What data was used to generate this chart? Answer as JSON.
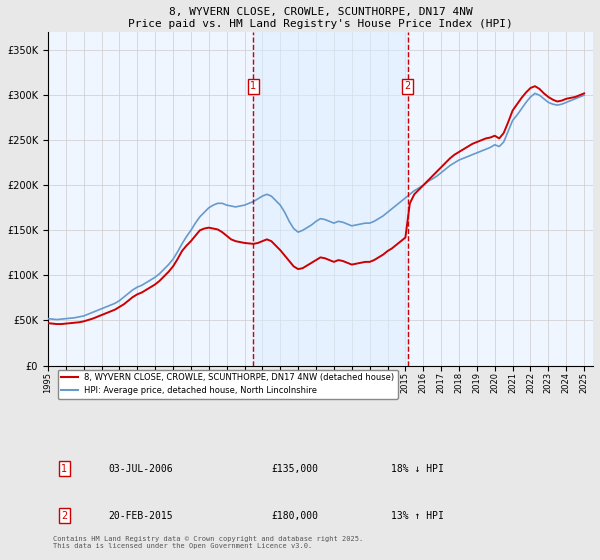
{
  "title": "8, WYVERN CLOSE, CROWLE, SCUNTHORPE, DN17 4NW",
  "subtitle": "Price paid vs. HM Land Registry's House Price Index (HPI)",
  "legend_line1": "8, WYVERN CLOSE, CROWLE, SCUNTHORPE, DN17 4NW (detached house)",
  "legend_line2": "HPI: Average price, detached house, North Lincolnshire",
  "annotation1_date": "03-JUL-2006",
  "annotation1_price": "£135,000",
  "annotation1_hpi": "18% ↓ HPI",
  "annotation2_date": "20-FEB-2015",
  "annotation2_price": "£180,000",
  "annotation2_hpi": "13% ↑ HPI",
  "vline1_year": 2006.5,
  "vline2_year": 2015.12,
  "ylabel_fmt": "£{0}K",
  "yticks": [
    0,
    50000,
    100000,
    150000,
    200000,
    250000,
    300000,
    350000
  ],
  "ylim": [
    0,
    370000
  ],
  "xlim_start": 1995,
  "xlim_end": 2025.5,
  "bg_color": "#ddeeff",
  "plot_bg": "#f0f6ff",
  "red_color": "#cc0000",
  "blue_color": "#6699cc",
  "vline_color": "#cc0000",
  "footer": "Contains HM Land Registry data © Crown copyright and database right 2025.\nThis data is licensed under the Open Government Licence v3.0.",
  "hpi_data_x": [
    1995.0,
    1995.25,
    1995.5,
    1995.75,
    1996.0,
    1996.25,
    1996.5,
    1996.75,
    1997.0,
    1997.25,
    1997.5,
    1997.75,
    1998.0,
    1998.25,
    1998.5,
    1998.75,
    1999.0,
    1999.25,
    1999.5,
    1999.75,
    2000.0,
    2000.25,
    2000.5,
    2000.75,
    2001.0,
    2001.25,
    2001.5,
    2001.75,
    2002.0,
    2002.25,
    2002.5,
    2002.75,
    2003.0,
    2003.25,
    2003.5,
    2003.75,
    2004.0,
    2004.25,
    2004.5,
    2004.75,
    2005.0,
    2005.25,
    2005.5,
    2005.75,
    2006.0,
    2006.25,
    2006.5,
    2006.75,
    2007.0,
    2007.25,
    2007.5,
    2007.75,
    2008.0,
    2008.25,
    2008.5,
    2008.75,
    2009.0,
    2009.25,
    2009.5,
    2009.75,
    2010.0,
    2010.25,
    2010.5,
    2010.75,
    2011.0,
    2011.25,
    2011.5,
    2011.75,
    2012.0,
    2012.25,
    2012.5,
    2012.75,
    2013.0,
    2013.25,
    2013.5,
    2013.75,
    2014.0,
    2014.25,
    2014.5,
    2014.75,
    2015.0,
    2015.25,
    2015.5,
    2015.75,
    2016.0,
    2016.25,
    2016.5,
    2016.75,
    2017.0,
    2017.25,
    2017.5,
    2017.75,
    2018.0,
    2018.25,
    2018.5,
    2018.75,
    2019.0,
    2019.25,
    2019.5,
    2019.75,
    2020.0,
    2020.25,
    2020.5,
    2020.75,
    2021.0,
    2021.25,
    2021.5,
    2021.75,
    2022.0,
    2022.25,
    2022.5,
    2022.75,
    2023.0,
    2023.25,
    2023.5,
    2023.75,
    2024.0,
    2024.25,
    2024.5,
    2024.75,
    2025.0
  ],
  "hpi_data_y": [
    52000,
    51500,
    51000,
    51500,
    52000,
    52500,
    53000,
    54000,
    55000,
    57000,
    59000,
    61000,
    63000,
    65000,
    67000,
    69000,
    72000,
    76000,
    80000,
    84000,
    87000,
    89000,
    92000,
    95000,
    98000,
    102000,
    107000,
    112000,
    118000,
    126000,
    135000,
    143000,
    150000,
    158000,
    165000,
    170000,
    175000,
    178000,
    180000,
    180000,
    178000,
    177000,
    176000,
    177000,
    178000,
    180000,
    182000,
    185000,
    188000,
    190000,
    188000,
    183000,
    178000,
    170000,
    160000,
    152000,
    148000,
    150000,
    153000,
    156000,
    160000,
    163000,
    162000,
    160000,
    158000,
    160000,
    159000,
    157000,
    155000,
    156000,
    157000,
    158000,
    158000,
    160000,
    163000,
    166000,
    170000,
    174000,
    178000,
    182000,
    186000,
    190000,
    194000,
    197000,
    200000,
    204000,
    207000,
    210000,
    214000,
    218000,
    222000,
    225000,
    228000,
    230000,
    232000,
    234000,
    236000,
    238000,
    240000,
    242000,
    245000,
    243000,
    248000,
    260000,
    272000,
    278000,
    285000,
    292000,
    298000,
    302000,
    300000,
    296000,
    292000,
    290000,
    289000,
    290000,
    292000,
    294000,
    296000,
    298000,
    300000
  ],
  "price_data_x": [
    1995.0,
    1995.25,
    1995.5,
    1995.75,
    1996.0,
    1996.25,
    1996.5,
    1996.75,
    1997.0,
    1997.25,
    1997.5,
    1997.75,
    1998.0,
    1998.25,
    1998.5,
    1998.75,
    1999.0,
    1999.25,
    1999.5,
    1999.75,
    2000.0,
    2000.25,
    2000.5,
    2000.75,
    2001.0,
    2001.25,
    2001.5,
    2001.75,
    2002.0,
    2002.25,
    2002.5,
    2002.75,
    2003.0,
    2003.25,
    2003.5,
    2003.75,
    2004.0,
    2004.25,
    2004.5,
    2004.75,
    2005.0,
    2005.25,
    2005.5,
    2005.75,
    2006.0,
    2006.25,
    2006.5,
    2006.75,
    2007.0,
    2007.25,
    2007.5,
    2007.75,
    2008.0,
    2008.25,
    2008.5,
    2008.75,
    2009.0,
    2009.25,
    2009.5,
    2009.75,
    2010.0,
    2010.25,
    2010.5,
    2010.75,
    2011.0,
    2011.25,
    2011.5,
    2011.75,
    2012.0,
    2012.25,
    2012.5,
    2012.75,
    2013.0,
    2013.25,
    2013.5,
    2013.75,
    2014.0,
    2014.25,
    2014.5,
    2014.75,
    2015.0,
    2015.25,
    2015.5,
    2015.75,
    2016.0,
    2016.25,
    2016.5,
    2016.75,
    2017.0,
    2017.25,
    2017.5,
    2017.75,
    2018.0,
    2018.25,
    2018.5,
    2018.75,
    2019.0,
    2019.25,
    2019.5,
    2019.75,
    2020.0,
    2020.25,
    2020.5,
    2020.75,
    2021.0,
    2021.25,
    2021.5,
    2021.75,
    2022.0,
    2022.25,
    2022.5,
    2022.75,
    2023.0,
    2023.25,
    2023.5,
    2023.75,
    2024.0,
    2024.25,
    2024.5,
    2024.75,
    2025.0
  ],
  "price_data_y": [
    47000,
    46500,
    46000,
    46000,
    46500,
    47000,
    47500,
    48000,
    49000,
    50500,
    52000,
    54000,
    56000,
    58000,
    60000,
    62000,
    65000,
    68000,
    72000,
    76000,
    79000,
    81000,
    84000,
    87000,
    90000,
    94000,
    99000,
    104000,
    110000,
    118000,
    127000,
    133000,
    138000,
    144000,
    150000,
    152000,
    153000,
    152000,
    151000,
    148000,
    144000,
    140000,
    138000,
    137000,
    136000,
    135500,
    135000,
    136000,
    138000,
    140000,
    138000,
    133000,
    128000,
    122000,
    116000,
    110000,
    107000,
    108000,
    111000,
    114000,
    117000,
    120000,
    119000,
    117000,
    115000,
    117000,
    116000,
    114000,
    112000,
    113000,
    114000,
    115000,
    115000,
    117000,
    120000,
    123000,
    127000,
    130000,
    134000,
    138000,
    142000,
    180000,
    190000,
    195000,
    200000,
    205000,
    210000,
    215000,
    220000,
    225000,
    230000,
    234000,
    237000,
    240000,
    243000,
    246000,
    248000,
    250000,
    252000,
    253000,
    255000,
    252000,
    258000,
    270000,
    283000,
    290000,
    297000,
    303000,
    308000,
    310000,
    307000,
    302000,
    298000,
    295000,
    293000,
    294000,
    296000,
    297000,
    298000,
    300000,
    302000
  ]
}
